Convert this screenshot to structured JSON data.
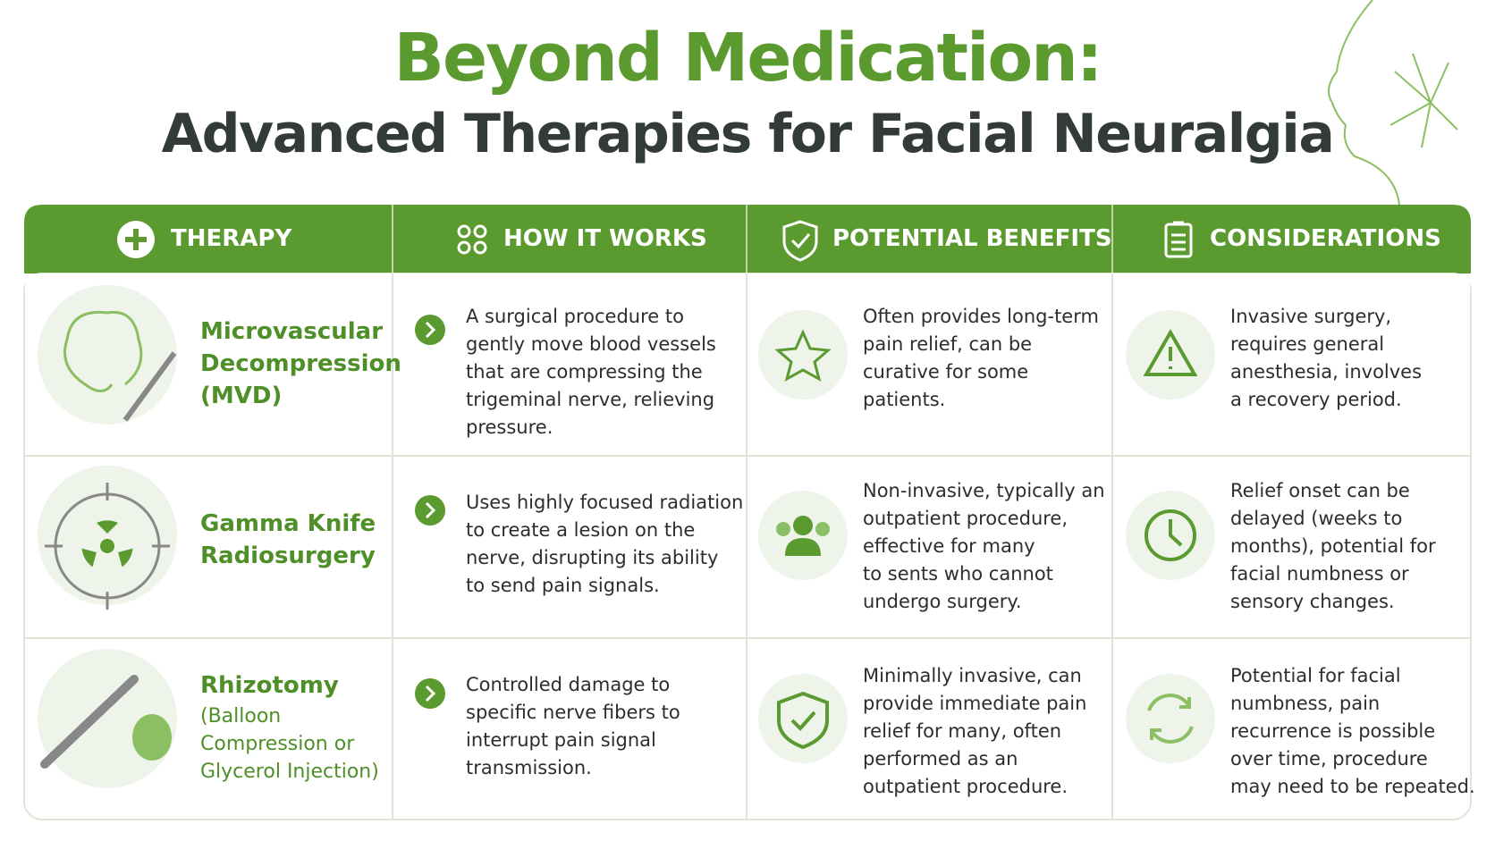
{
  "title": "Beyond Medication:",
  "subtitle": "Advanced Therapies for Facial Neuralgia",
  "table": {
    "headers": [
      "THERAPY",
      "HOW IT WORKS",
      "POTENTIAL BENEFITS",
      "CONSIDERATIONS"
    ],
    "rows": [
      {
        "therapy": [
          "Microvascular",
          "Decompression",
          "(MVD)"
        ],
        "how": [
          "A surgical procedure to",
          "gently move blood vessels",
          "that are compressing the",
          "trigeminal nerve, relieving",
          "pressure."
        ],
        "benefits": [
          "Often provides long-term",
          "pain relief, can be",
          "curative for some",
          "patients."
        ],
        "considerations": [
          "Invasive surgery,",
          "requires general",
          "anesthesia, involves",
          "a recovery period."
        ]
      },
      {
        "therapy": [
          "Gamma Knife",
          "Radiosurgery"
        ],
        "how": [
          "Uses highly focused radiation",
          "to create a lesion on the",
          "nerve, disrupting its ability",
          "to send pain signals."
        ],
        "benefits": [
          "Non-invasive, typically an",
          "outpatient procedure,",
          "effective for many",
          "to sents who cannot",
          "undergo surgery."
        ],
        "considerations": [
          "Relief onset can be",
          "delayed (weeks to",
          "months), potential for",
          "facial numbness or",
          "sensory changes."
        ]
      },
      {
        "therapy": [
          "Rhizotomy"
        ],
        "therapy_note": [
          "(Balloon",
          "Compression or",
          "Glycerol Injection)"
        ],
        "how": [
          "Controlled damage to",
          "specific nerve fibers to",
          "interrupt pain signal",
          "transmission."
        ],
        "benefits": [
          "Minimally invasive, can",
          "provide immediate pain",
          "relief for many, often",
          "performed as an",
          "outpatient procedure."
        ],
        "considerations": [
          "Potential for facial",
          "numbness, pain",
          "recurrence is possible",
          "over time, procedure",
          "may need to be repeated."
        ]
      }
    ]
  }
}
